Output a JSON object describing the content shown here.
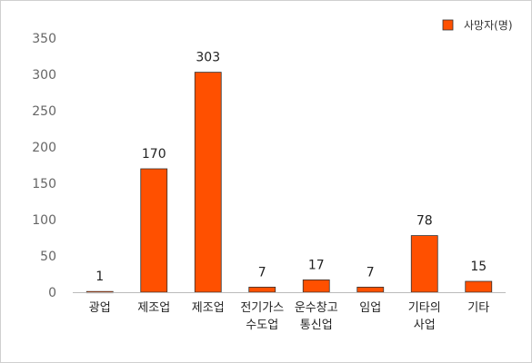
{
  "chart_data": {
    "type": "bar",
    "title": "",
    "xlabel": "",
    "ylabel": "",
    "ylim": [
      0,
      350
    ],
    "yticks": [
      0,
      50,
      100,
      150,
      200,
      250,
      300,
      350
    ],
    "grid": false,
    "legend": "top-right",
    "categories": [
      [
        "광업"
      ],
      [
        "제조업"
      ],
      [
        "제조업"
      ],
      [
        "전기가스",
        "수도업"
      ],
      [
        "운수창고",
        "통신업"
      ],
      [
        "임업"
      ],
      [
        "기타의",
        "사업"
      ],
      [
        "기타"
      ]
    ],
    "series": [
      {
        "name": "사망자(명)",
        "color": "#ff5000",
        "values": [
          1,
          170,
          303,
          7,
          17,
          7,
          78,
          15
        ],
        "labels": [
          "1",
          "170",
          "303",
          "7",
          "17",
          "7",
          "78",
          "15"
        ]
      }
    ]
  }
}
